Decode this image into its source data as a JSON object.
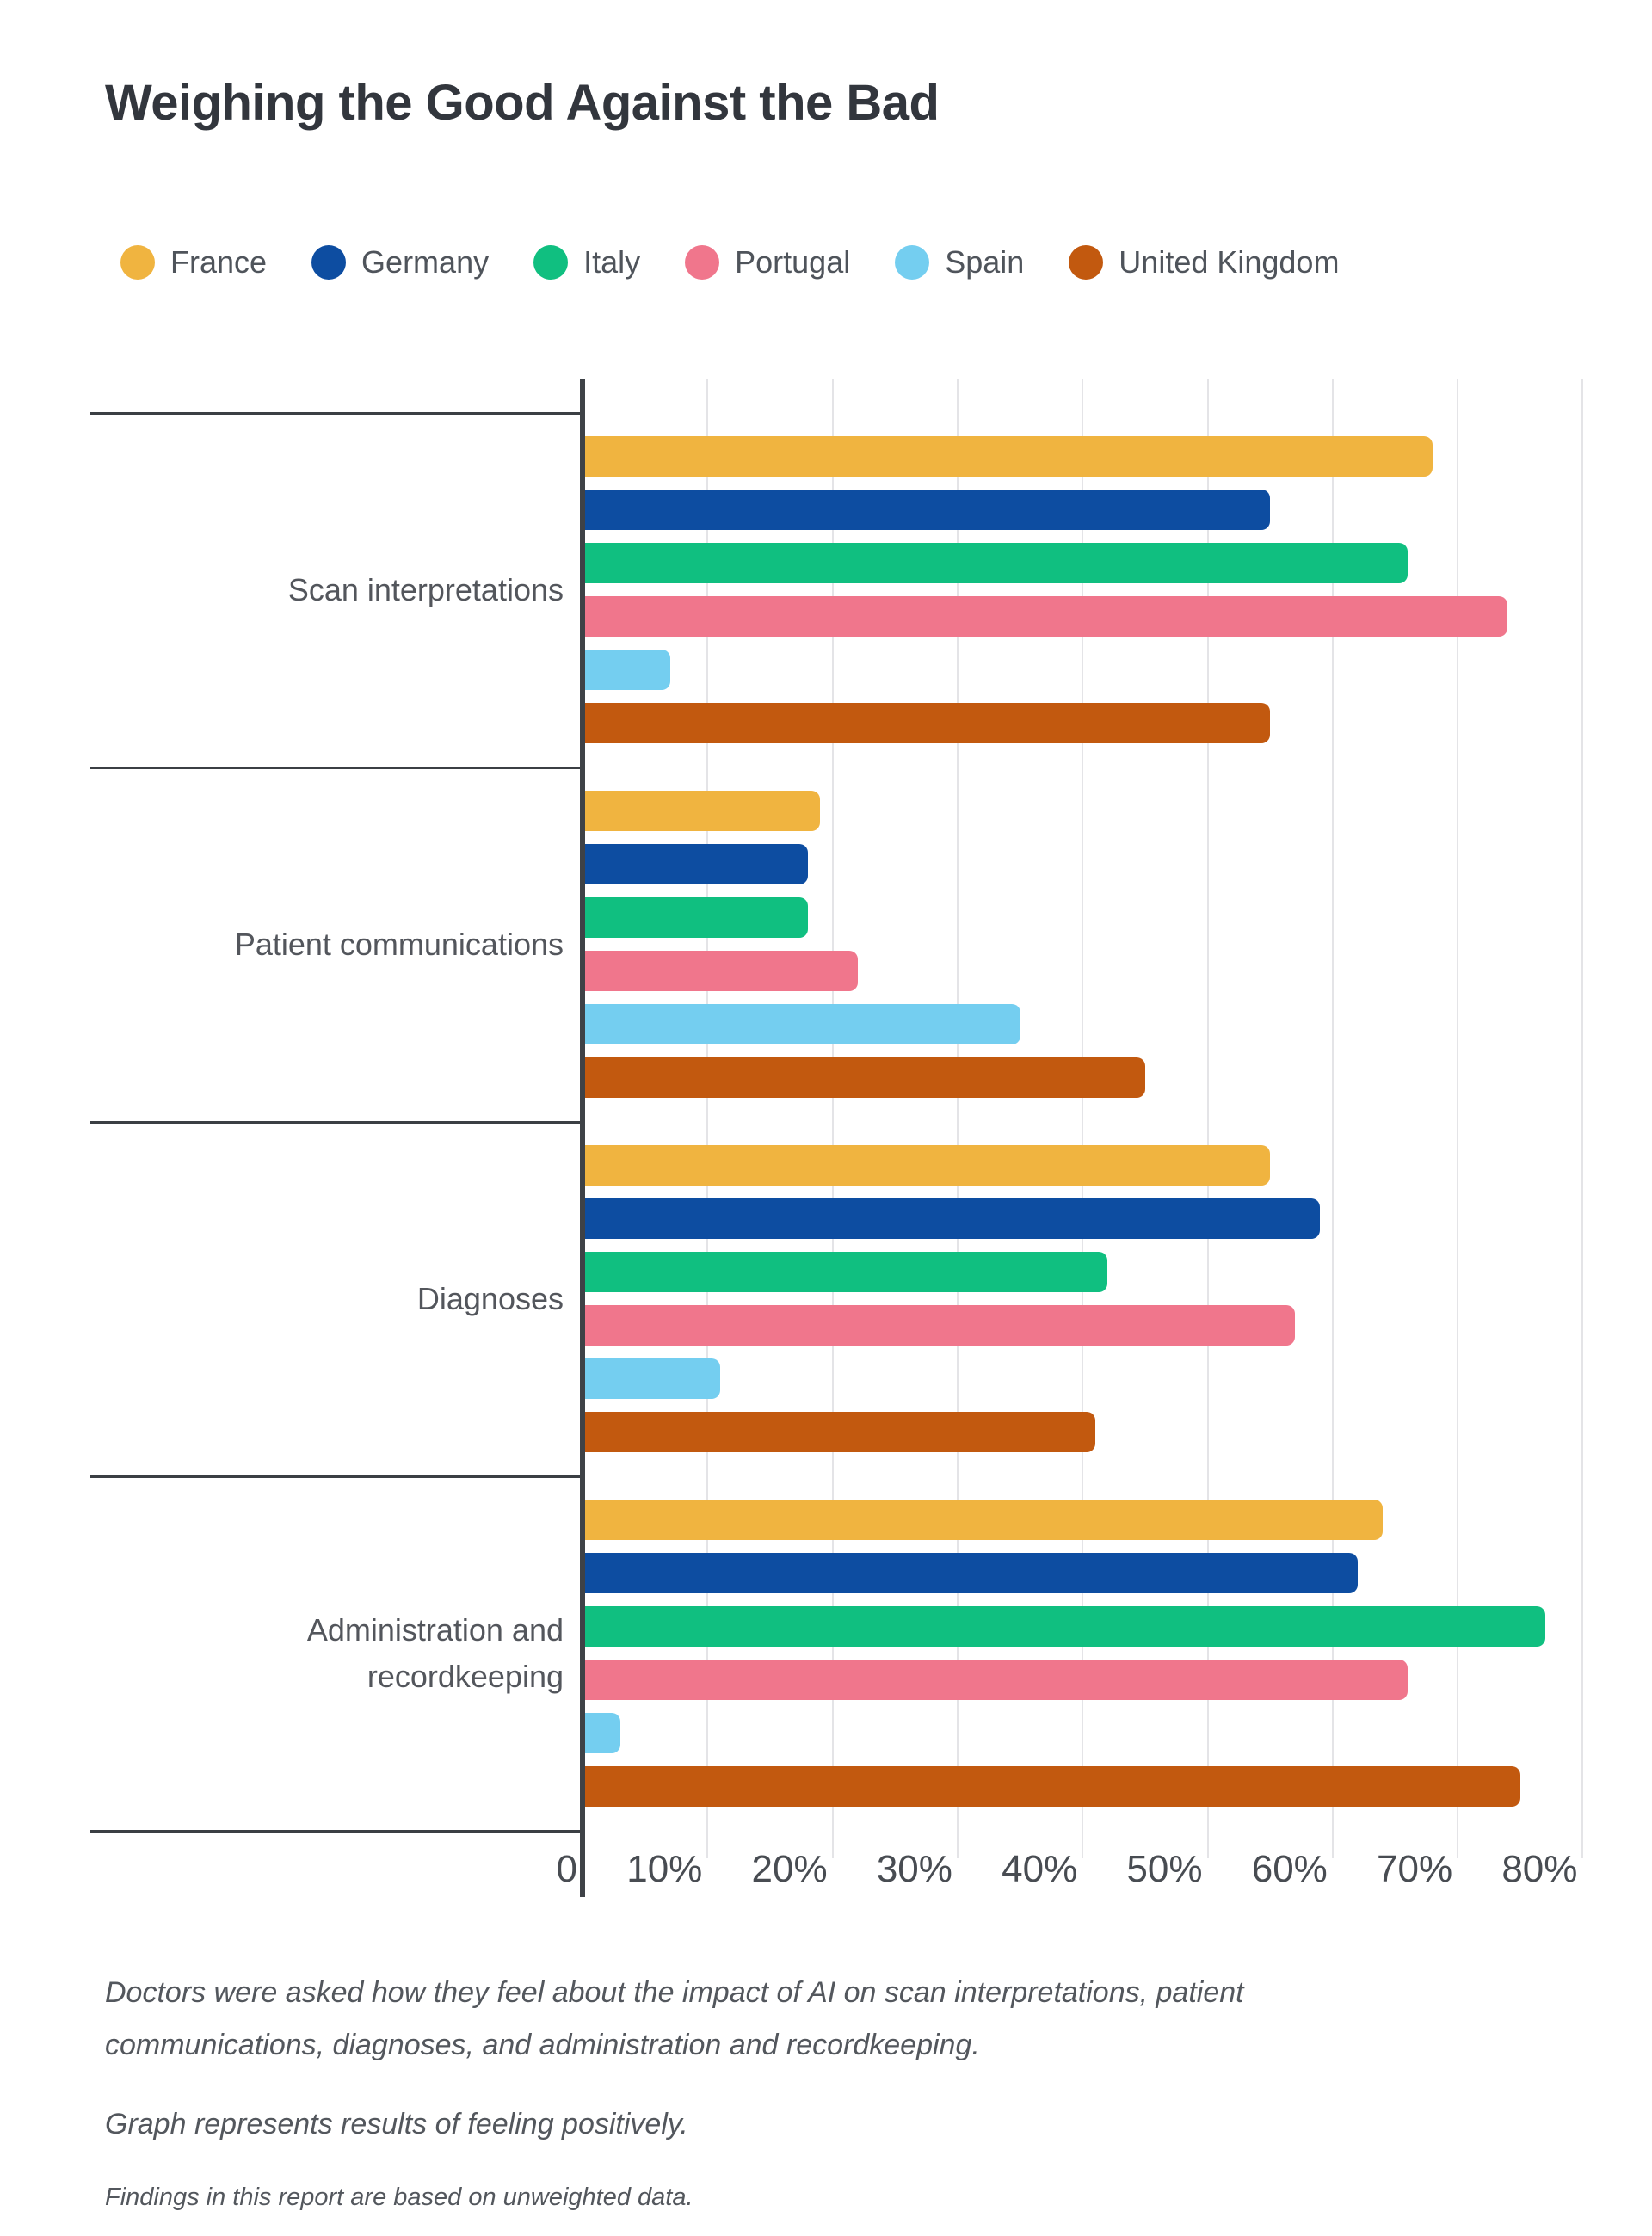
{
  "title": "Weighing the Good Against the Bad",
  "chart_data": {
    "type": "bar",
    "orientation": "horizontal",
    "title": "Weighing the Good Against the Bad",
    "categories": [
      "Scan interpretations",
      "Patient communications",
      "Diagnoses",
      "Administration and recordkeeping"
    ],
    "series": [
      {
        "name": "France",
        "color": "#F0B440",
        "values": [
          68,
          19,
          55,
          64
        ]
      },
      {
        "name": "Germany",
        "color": "#0D4DA1",
        "values": [
          55,
          18,
          59,
          62
        ]
      },
      {
        "name": "Italy",
        "color": "#10BF80",
        "values": [
          66,
          18,
          42,
          77
        ]
      },
      {
        "name": "Portugal",
        "color": "#F0768C",
        "values": [
          74,
          22,
          57,
          66
        ]
      },
      {
        "name": "Spain",
        "color": "#74CEF0",
        "values": [
          7,
          35,
          11,
          3
        ]
      },
      {
        "name": "United Kingdom",
        "color": "#C2590F",
        "values": [
          55,
          45,
          41,
          75
        ]
      }
    ],
    "x_axis": {
      "ticks": [
        "0",
        "10%",
        "20%",
        "30%",
        "40%",
        "50%",
        "60%",
        "70%",
        "80%"
      ],
      "values": [
        0,
        10,
        20,
        30,
        40,
        50,
        60,
        70,
        80
      ],
      "min": 0,
      "max": 85,
      "unit": "%"
    },
    "legend_position": "top",
    "grid": "vertical"
  },
  "footer": {
    "note1": "Doctors were asked how they feel about the impact of AI on scan interpretations, patient communications, diagnoses, and administration and recordkeeping.",
    "note2": "Graph represents results of feeling positively.",
    "note3": "Findings in this report are based on unweighted data."
  },
  "colors": {
    "title_text": "#32363D",
    "label_text": "#53565C",
    "axis_line": "#3E4247",
    "gridline": "#E4E4E7",
    "background": "#FFFFFF"
  }
}
